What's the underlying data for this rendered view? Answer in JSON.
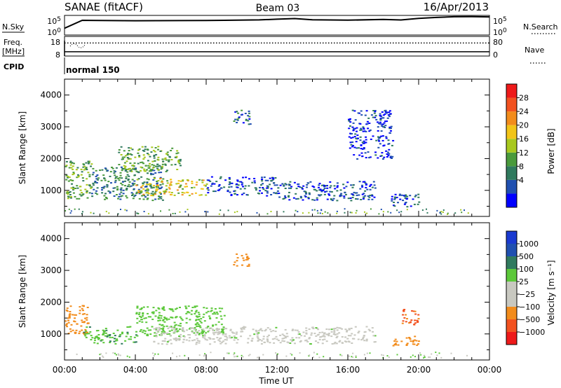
{
  "header": {
    "station": "SANAE (fitACF)",
    "beam": "Beam 03",
    "date": "16/Apr/2013"
  },
  "labels": {
    "nsky": "N.Sky",
    "nsearch": "N.Search",
    "freq": "Freq.",
    "freq_unit": "[MHz]",
    "nave": "Nave",
    "cpid": "CPID",
    "cpid_value": "normal 150",
    "slant_range": "Slant Range [km]",
    "time_axis": "Time UT",
    "power_label": "Power [dB]",
    "velocity_label": "Velocity [m s⁻¹]"
  },
  "chart_data": [
    {
      "type": "line",
      "panel": "noise",
      "left_ticks": [
        "10^5",
        "10^0"
      ],
      "right_ticks": [
        "10^5",
        "10^0"
      ],
      "series": [
        {
          "name": "N.Sky",
          "style": "solid",
          "x": [
            0,
            1,
            4,
            8,
            9,
            11,
            12,
            13,
            14,
            16,
            18,
            19,
            20,
            21,
            22,
            23,
            24
          ],
          "y": [
            1.6,
            3.8,
            3.9,
            4.0,
            4.1,
            4.2,
            4.4,
            4.5,
            4.2,
            4.1,
            4.1,
            4.2,
            4.6,
            4.9,
            5.0,
            5.1,
            5.1
          ]
        },
        {
          "name": "N.Search",
          "style": "dotted",
          "x": [],
          "y": []
        }
      ]
    },
    {
      "type": "line",
      "panel": "frequency_nave",
      "left_ticks": [
        "18",
        "8"
      ],
      "right_ticks": [
        "80",
        "0"
      ],
      "series": [
        {
          "name": "Freq.",
          "style": "solid",
          "x": [
            0,
            24
          ],
          "y": [
            10.3,
            10.3
          ]
        },
        {
          "name": "Nave",
          "style": "dotted",
          "x": [
            0,
            24
          ],
          "y": [
            74,
            74
          ]
        }
      ]
    },
    {
      "type": "heatmap",
      "panel": "power",
      "xlabel": "Time UT",
      "ylabel": "Slant Range [km]",
      "xlim": [
        0,
        24
      ],
      "ylim": [
        180,
        4500
      ],
      "yticks": [
        1000,
        2000,
        3000,
        4000
      ],
      "colorbar": {
        "title": "Power [dB]",
        "ticks": [
          "28",
          "24",
          "20",
          "16",
          "12",
          "8",
          "4"
        ],
        "colors": [
          "#0000ff",
          "#2050b0",
          "#307a5e",
          "#4a9a3c",
          "#a8c81e",
          "#f2c418",
          "#f28c1c",
          "#f25220",
          "#ee1a1a"
        ]
      },
      "regions": [
        {
          "x": [
            0.0,
            1.5
          ],
          "y": [
            750,
            1950
          ],
          "value": 14
        },
        {
          "x": [
            1.5,
            5.5
          ],
          "y": [
            700,
            1750
          ],
          "value": 10
        },
        {
          "x": [
            4.0,
            8.0
          ],
          "y": [
            850,
            1400
          ],
          "value": 20
        },
        {
          "x": [
            3.0,
            6.5
          ],
          "y": [
            1600,
            2400
          ],
          "value": 14
        },
        {
          "x": [
            8.0,
            12.0
          ],
          "y": [
            850,
            1450
          ],
          "value": 6
        },
        {
          "x": [
            12.0,
            17.5
          ],
          "y": [
            700,
            1300
          ],
          "value": 6
        },
        {
          "x": [
            9.5,
            10.5
          ],
          "y": [
            3100,
            3550
          ],
          "value": 8
        },
        {
          "x": [
            16.0,
            18.5
          ],
          "y": [
            2000,
            3550
          ],
          "value": 4
        },
        {
          "x": [
            18.3,
            20.0
          ],
          "y": [
            500,
            900
          ],
          "value": 6
        }
      ]
    },
    {
      "type": "heatmap",
      "panel": "velocity",
      "xlabel": "Time UT",
      "ylabel": "Slant Range [km]",
      "xlim": [
        0,
        24
      ],
      "ylim": [
        180,
        4500
      ],
      "yticks": [
        1000,
        2000,
        3000,
        4000
      ],
      "xticks": [
        "00:00",
        "04:00",
        "08:00",
        "12:00",
        "16:00",
        "20:00",
        "00:00"
      ],
      "colorbar": {
        "title": "Velocity [m s⁻¹]",
        "ticks": [
          "1000",
          "500",
          "100",
          "25",
          "−25",
          "−100",
          "−500",
          "−1000"
        ],
        "colors": [
          "#ee1a1a",
          "#f25220",
          "#f28c1c",
          "#c8c8c0",
          "#c8c8c0",
          "#5cc83a",
          "#307a5e",
          "#2050b0",
          "#1a3ad0"
        ]
      },
      "regions": [
        {
          "x": [
            0.0,
            1.3
          ],
          "y": [
            1000,
            1950
          ],
          "value": -300
        },
        {
          "x": [
            1.0,
            4.0
          ],
          "y": [
            700,
            1250
          ],
          "value": 80
        },
        {
          "x": [
            4.0,
            9.0
          ],
          "y": [
            950,
            1900
          ],
          "value": 60
        },
        {
          "x": [
            5.0,
            17.5
          ],
          "y": [
            700,
            1250
          ],
          "value": 0
        },
        {
          "x": [
            9.5,
            10.5
          ],
          "y": [
            3150,
            3550
          ],
          "value": -300
        },
        {
          "x": [
            18.5,
            20.0
          ],
          "y": [
            650,
            950
          ],
          "value": -200
        },
        {
          "x": [
            19.0,
            20.0
          ],
          "y": [
            1300,
            1800
          ],
          "value": -700
        }
      ]
    }
  ]
}
